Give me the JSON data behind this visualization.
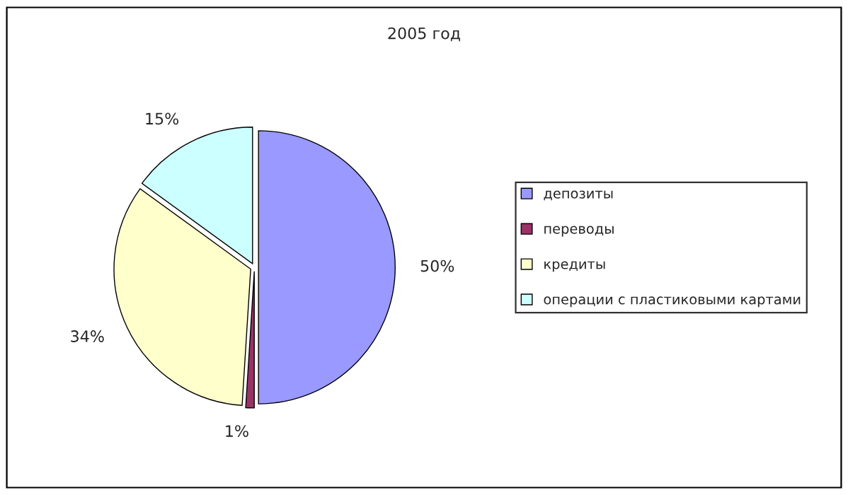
{
  "chart_data": {
    "type": "pie",
    "title": "2005 год",
    "categories": [
      "депозиты",
      "переводы",
      "кредиты",
      "операции с пластиковыми картами"
    ],
    "values": [
      50,
      1,
      34,
      15
    ],
    "colors": [
      "#9999ff",
      "#993366",
      "#ffffcc",
      "#ccffff"
    ],
    "value_labels": [
      "50%",
      "1%",
      "34%",
      "15%"
    ],
    "legend": "right"
  }
}
